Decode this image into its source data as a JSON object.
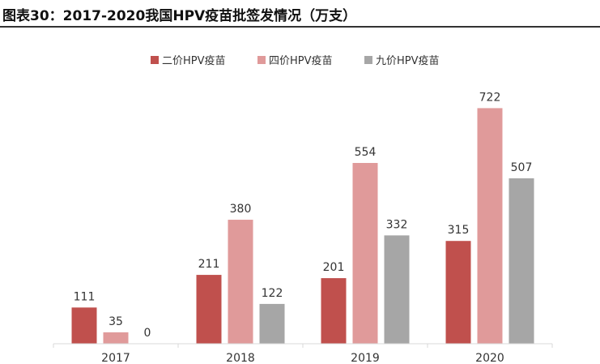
{
  "title": "图表30：2017-2020我国HPV疫苗批签发情况（万支）",
  "chart_data": {
    "type": "bar",
    "categories": [
      "2017",
      "2018",
      "2019",
      "2020"
    ],
    "series": [
      {
        "name": "二价HPV疫苗",
        "color": "#c0504d",
        "values": [
          111,
          211,
          201,
          315
        ]
      },
      {
        "name": "四价HPV疫苗",
        "color": "#e09a9a",
        "values": [
          35,
          380,
          554,
          722
        ]
      },
      {
        "name": "九价HPV疫苗",
        "color": "#a6a6a6",
        "values": [
          0,
          122,
          332,
          507
        ]
      }
    ],
    "ylim": [
      0,
      800
    ],
    "legend_position": "top-center",
    "grid": false
  }
}
